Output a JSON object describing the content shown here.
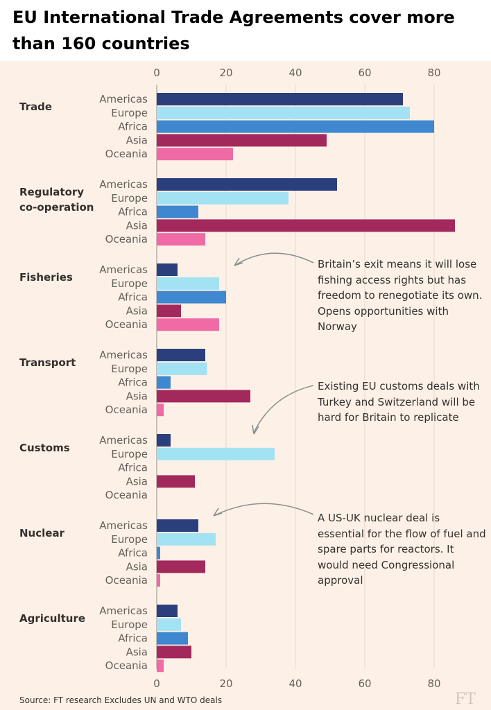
{
  "title": "EU International Trade Agreements cover more than 160 countries",
  "colors": {
    "Americas": "#2a3f7c",
    "Europe": "#a3e2f2",
    "Africa": "#3f87cf",
    "Asia": "#a3285c",
    "Oceania": "#f06aa6",
    "background": "#fdf1e7"
  },
  "chart_data": {
    "type": "bar",
    "orientation": "horizontal",
    "xlim": [
      0,
      88
    ],
    "x_ticks": [
      "0",
      "20",
      "40",
      "60",
      "80"
    ],
    "x_tick_values": [
      0,
      20,
      40,
      60,
      80
    ],
    "regions": [
      "Americas",
      "Europe",
      "Africa",
      "Asia",
      "Oceania"
    ],
    "grid": true,
    "groups": [
      {
        "category": "Trade",
        "values": [
          71,
          73,
          80,
          49,
          22
        ]
      },
      {
        "category": "Regulatory co-operation",
        "values": [
          52,
          38,
          12,
          86,
          14
        ]
      },
      {
        "category": "Fisheries",
        "values": [
          6,
          18,
          20,
          7,
          18
        ]
      },
      {
        "category": "Transport",
        "values": [
          14,
          14.5,
          4,
          27,
          2
        ]
      },
      {
        "category": "Customs",
        "values": [
          4,
          34,
          0,
          11,
          0
        ]
      },
      {
        "category": "Nuclear",
        "values": [
          12,
          17,
          1,
          14,
          1
        ]
      },
      {
        "category": "Agriculture",
        "values": [
          6,
          7,
          9,
          10,
          2
        ]
      }
    ]
  },
  "annotations": [
    {
      "text": "Britain’s exit means it will lose fishing access rights but has freedom to renegotiate its own. Opens opportunities with Norway"
    },
    {
      "text": "Existing EU customs deals with Turkey and Switzerland will be hard for Britain to replicate"
    },
    {
      "text": "A US-UK nuclear deal is essential for the flow of fuel and spare parts for reactors. It would need Congressional approval"
    }
  ],
  "source": "Source: FT research   Excludes UN and WTO deals",
  "brand": "FT"
}
